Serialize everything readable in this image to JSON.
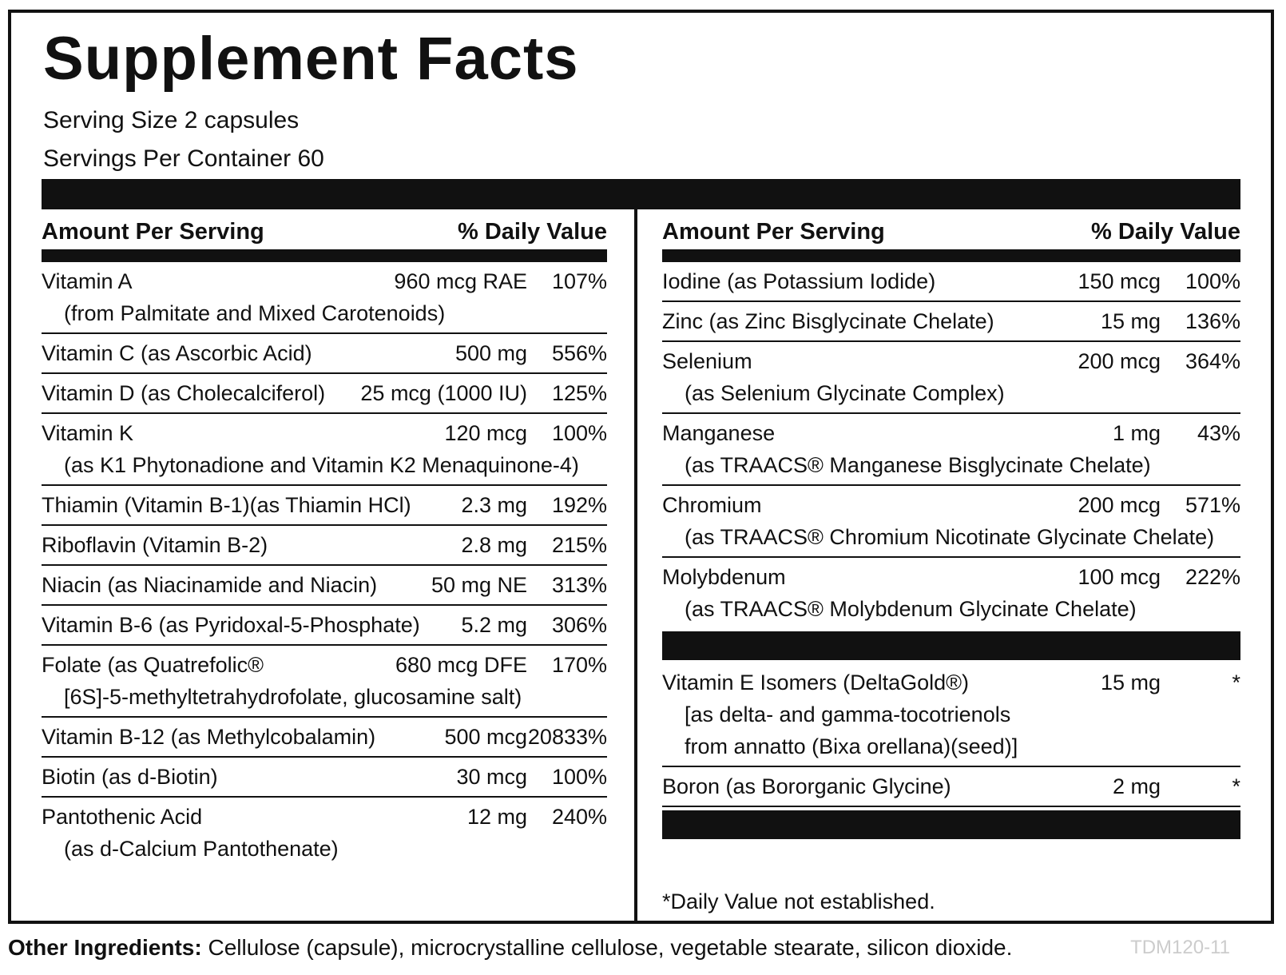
{
  "title": "Supplement Facts",
  "serving_size": "Serving Size 2 capsules",
  "servings_per_container": "Servings Per Container 60",
  "left": {
    "header": {
      "amount": "Amount Per Serving",
      "dv": "% Daily Value"
    },
    "rows": [
      {
        "name": "Vitamin A",
        "amount": "960 mcg RAE",
        "dv": "107%",
        "sub_lines": [
          "(from Palmitate and Mixed Carotenoids)"
        ]
      },
      {
        "name": "Vitamin C (as Ascorbic Acid)",
        "amount": "500 mg",
        "dv": "556%"
      },
      {
        "name": "Vitamin D (as Cholecalciferol)",
        "amount": "25 mcg (1000 IU)",
        "dv": "125%"
      },
      {
        "name": "Vitamin K",
        "amount": "120 mcg",
        "dv": "100%",
        "sub_lines": [
          "(as K1 Phytonadione and Vitamin K2 Menaquinone-4)"
        ]
      },
      {
        "name": "Thiamin (Vitamin B-1)(as Thiamin HCl)",
        "amount": "2.3 mg",
        "dv": "192%"
      },
      {
        "name": "Riboflavin (Vitamin B-2)",
        "amount": "2.8 mg",
        "dv": "215%"
      },
      {
        "name": "Niacin (as Niacinamide and Niacin)",
        "amount": "50 mg NE",
        "dv": "313%"
      },
      {
        "name": "Vitamin B-6 (as Pyridoxal-5-Phosphate)",
        "amount": "5.2 mg",
        "dv": "306%"
      },
      {
        "name": "Folate (as Quatrefolic®",
        "amount": "680 mcg DFE",
        "dv": "170%",
        "sub_lines": [
          "[6S]-5-methyltetrahydrofolate, glucosamine salt)"
        ]
      },
      {
        "name": "Vitamin B-12 (as Methylcobalamin)",
        "amount": "500 mcg",
        "dv": "20833%"
      },
      {
        "name": "Biotin (as d-Biotin)",
        "amount": "30 mcg",
        "dv": "100%"
      },
      {
        "name": "Pantothenic Acid",
        "amount": "12 mg",
        "dv": "240%",
        "sub_lines": [
          "(as d-Calcium Pantothenate)"
        ]
      }
    ]
  },
  "right": {
    "header": {
      "amount": "Amount Per Serving",
      "dv": "% Daily Value"
    },
    "rows": [
      {
        "name": "Iodine (as Potassium Iodide)",
        "amount": "150 mcg",
        "dv": "100%"
      },
      {
        "name": "Zinc (as Zinc Bisglycinate Chelate)",
        "amount": "15 mg",
        "dv": "136%"
      },
      {
        "name": "Selenium",
        "amount": "200 mcg",
        "dv": "364%",
        "sub_lines": [
          "(as Selenium Glycinate Complex)"
        ]
      },
      {
        "name": "Manganese",
        "amount": "1 mg",
        "dv": "43%",
        "sub_lines": [
          "(as TRAACS® Manganese Bisglycinate Chelate)"
        ]
      },
      {
        "name": "Chromium",
        "amount": "200 mcg",
        "dv": "571%",
        "sub_lines": [
          "(as TRAACS® Chromium Nicotinate Glycinate Chelate)"
        ]
      },
      {
        "name": "Molybdenum",
        "amount": "100 mcg",
        "dv": "222%",
        "sub_lines": [
          "(as TRAACS® Molybdenum Glycinate Chelate)"
        ]
      }
    ],
    "rows2": [
      {
        "name": "Vitamin E Isomers (DeltaGold®)",
        "amount": "15 mg",
        "dv": "*",
        "sub_lines": [
          "[as delta- and gamma-tocotrienols",
          "from annatto (Bixa orellana)(seed)]"
        ]
      },
      {
        "name": "Boron (as Bororganic Glycine)",
        "amount": "2 mg",
        "dv": "*"
      }
    ],
    "footnote": "*Daily Value not established."
  },
  "other_ingredients": {
    "label": "Other Ingredients:",
    "text": "Cellulose (capsule), microcrystalline cellulose, vegetable stearate, silicon dioxide."
  },
  "code": "TDM120-11"
}
